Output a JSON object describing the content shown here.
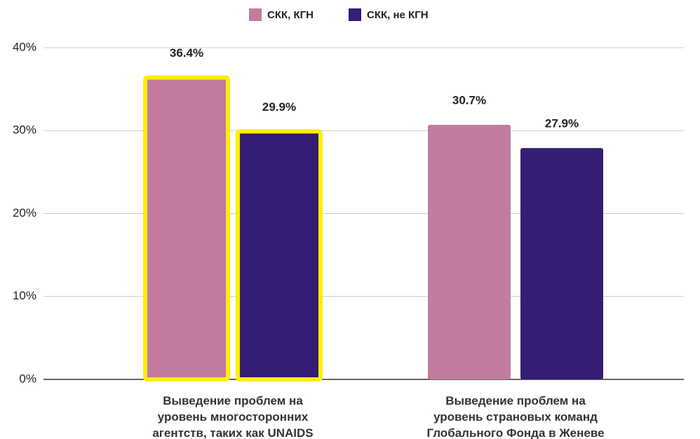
{
  "chart_data": {
    "type": "bar",
    "categories": [
      "Выведение проблем на\nуровень многосторонних\nагентств, таких как UNAIDS",
      "Выведение проблем на\nуровень страновых команд\nГлобального Фонда в Женеве"
    ],
    "series": [
      {
        "name": "СКК, КГН",
        "color": "#c27ba0",
        "values": [
          36.4,
          30.7
        ],
        "value_labels": [
          "36.4%",
          "30.7%"
        ]
      },
      {
        "name": "СКК, не КГН",
        "color": "#351c75",
        "values": [
          29.9,
          27.9
        ],
        "value_labels": [
          "29.9%",
          "27.9%"
        ]
      }
    ],
    "ylim": [
      0,
      40
    ],
    "yticks": [
      {
        "value": 0,
        "label": "0%"
      },
      {
        "value": 10,
        "label": "10%"
      },
      {
        "value": 20,
        "label": "20%"
      },
      {
        "value": 30,
        "label": "30%"
      },
      {
        "value": 40,
        "label": "40%"
      }
    ],
    "grid": true,
    "legend": "top",
    "highlighted": [
      true,
      false
    ],
    "highlight_color": "#ffee00"
  }
}
